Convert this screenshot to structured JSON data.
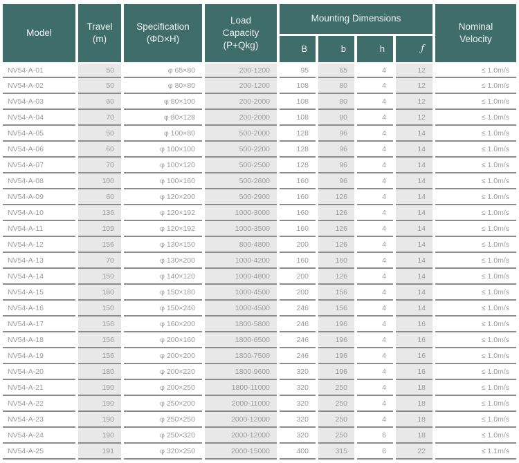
{
  "table": {
    "title": "elevator-traction-specification-table",
    "colors": {
      "header_bg": "#3f6d6a",
      "header_text": "#edf3f3",
      "shaded_cell_bg": "#e8e8e8",
      "row_line": "#8b8b8b",
      "data_text": "#9a9a9a"
    },
    "headers": {
      "model": "Model",
      "travel": "Travel\n(m)",
      "specification": "Specification\n(ΦD×H)",
      "load_capacity": "Load\nCapacity\n(P+Qkg)",
      "mounting_dimensions": "Mounting Dimensions",
      "sub_headers": [
        "B",
        "b",
        "h",
        "ƒ"
      ],
      "nominal_velocity": "Nominal\nVelocity"
    },
    "rows": [
      [
        "NV54-A-01",
        "50",
        "φ 65×80",
        "200-1200",
        "95",
        "65",
        "4",
        "12",
        "≤ 1.0m/s"
      ],
      [
        "NV54-A-02",
        "50",
        "φ 80×80",
        "200-1200",
        "108",
        "80",
        "4",
        "12",
        "≤ 1.0m/s"
      ],
      [
        "NV54-A-03",
        "60",
        "φ 80×100",
        "200-2000",
        "108",
        "80",
        "4",
        "12",
        "≤ 1.0m/s"
      ],
      [
        "NV54-A-04",
        "70",
        "φ 80×128",
        "200-2000",
        "108",
        "80",
        "4",
        "12",
        "≤ 1.0m/s"
      ],
      [
        "NV54-A-05",
        "50",
        "φ 100×80",
        "500-2000",
        "128",
        "96",
        "4",
        "14",
        "≤ 1.0m/s"
      ],
      [
        "NV54-A-06",
        "60",
        "φ 100×100",
        "500-2200",
        "128",
        "96",
        "4",
        "14",
        "≤ 1.0m/s"
      ],
      [
        "NV54-A-07",
        "70",
        "φ 100×120",
        "500-2500",
        "128",
        "96",
        "4",
        "14",
        "≤ 1.0m/s"
      ],
      [
        "NV54-A-08",
        "100",
        "φ 100×160",
        "500-2600",
        "160",
        "96",
        "4",
        "14",
        "≤ 1.0m/s"
      ],
      [
        "NV54-A-09",
        "60",
        "φ 120×200",
        "500-2900",
        "160",
        "126",
        "4",
        "14",
        "≤ 1.0m/s"
      ],
      [
        "NV54-A-10",
        "136",
        "φ 120×192",
        "1000-3000",
        "160",
        "126",
        "4",
        "14",
        "≤ 1.0m/s"
      ],
      [
        "NV54-A-11",
        "109",
        "φ 120×192",
        "1000-3500",
        "160",
        "126",
        "4",
        "14",
        "≤ 1.0m/s"
      ],
      [
        "NV54-A-12",
        "156",
        "φ 130×150",
        "800-4800",
        "200",
        "126",
        "4",
        "14",
        "≤ 1.0m/s"
      ],
      [
        "NV54-A-13",
        "70",
        "φ 130×200",
        "1000-4200",
        "160",
        "160",
        "4",
        "14",
        "≤ 1.0m/s"
      ],
      [
        "NV54-A-14",
        "150",
        "φ 140×120",
        "1000-4800",
        "200",
        "126",
        "4",
        "14",
        "≤ 1.0m/s"
      ],
      [
        "NV54-A-15",
        "180",
        "φ 150×180",
        "1000-4500",
        "200",
        "156",
        "4",
        "14",
        "≤ 1.0m/s"
      ],
      [
        "NV54-A-16",
        "150",
        "φ 150×240",
        "1000-4500",
        "246",
        "156",
        "4",
        "14",
        "≤ 1.0m/s"
      ],
      [
        "NV54-A-17",
        "156",
        "φ 160×200",
        "1800-5800",
        "246",
        "196",
        "4",
        "16",
        "≤ 1.0m/s"
      ],
      [
        "NV54-A-18",
        "156",
        "φ 200×160",
        "1800-6500",
        "246",
        "196",
        "4",
        "16",
        "≤ 1.0m/s"
      ],
      [
        "NV54-A-19",
        "156",
        "φ 200×200",
        "1800-7500",
        "246",
        "196",
        "4",
        "16",
        "≤ 1.0m/s"
      ],
      [
        "NV54-A-20",
        "180",
        "φ 200×220",
        "1800-9600",
        "320",
        "196",
        "4",
        "16",
        "≤ 1.0m/s"
      ],
      [
        "NV54-A-21",
        "190",
        "φ 200×250",
        "1800-11000",
        "320",
        "250",
        "4",
        "18",
        "≤ 1.0m/s"
      ],
      [
        "NV54-A-22",
        "190",
        "φ 250×200",
        "2000-11000",
        "320",
        "250",
        "4",
        "18",
        "≤ 1.0m/s"
      ],
      [
        "NV54-A-23",
        "190",
        "φ 250×250",
        "2000-12000",
        "320",
        "250",
        "4",
        "18",
        "≤ 1.0m/s"
      ],
      [
        "NV54-A-24",
        "190",
        "φ 250×320",
        "2000-12000",
        "320",
        "250",
        "6",
        "18",
        "≤ 1.0m/s"
      ],
      [
        "NV54-A-25",
        "191",
        "φ 320×250",
        "2000-15000",
        "400",
        "315",
        "6",
        "22",
        "≤ 1.1m/s"
      ]
    ]
  }
}
